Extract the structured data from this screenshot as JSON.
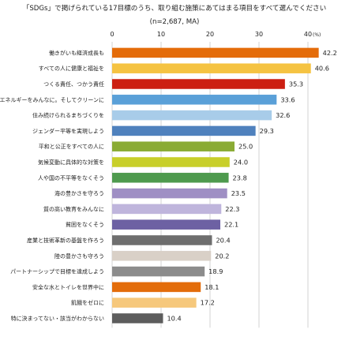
{
  "chart_data": {
    "type": "bar",
    "orientation": "horizontal",
    "title": "「SDGs」で掲げられている17目標のうち、取り組む施策にあてはまる項目をすべて選んでください",
    "subtitle": "(n=2,687, MA)",
    "unit": "(%)",
    "xlim": [
      0,
      45
    ],
    "ticks": [
      0,
      10,
      20,
      30,
      40
    ],
    "grid": true,
    "categories": [
      "働きがいも経済成長も",
      "すべての人に健康と福祉を",
      "つくる責任、つかう責任",
      "エネルギーをみんなに。そしてクリーンに",
      "住み続けられるまちづくりを",
      "ジェンダー平等を実現しよう",
      "平和と公正をすべての人に",
      "気候変動に具体的な対策を",
      "人や国の不平等をなくそう",
      "海の豊かさを守ろう",
      "質の高い教育をみんなに",
      "貧困をなくそう",
      "産業と技術革新の基盤を作ろう",
      "陸の豊かさも守ろう",
      "パートナーシップで目標を達成しよう",
      "安全な水とトイレを世界中に",
      "飢餓をゼロに",
      "特に決まってない・該当がわからない"
    ],
    "values": [
      42.2,
      40.6,
      35.3,
      33.6,
      32.6,
      29.3,
      25.0,
      24.0,
      23.8,
      23.5,
      22.3,
      22.1,
      20.4,
      20.2,
      18.9,
      18.1,
      17.2,
      10.4
    ],
    "value_labels": [
      "42.2",
      "40.6",
      "35.3",
      "33.6",
      "32.6",
      "29.3",
      "25.0",
      "24.0",
      "23.8",
      "23.5",
      "22.3",
      "22.1",
      "20.4",
      "20.2",
      "18.9",
      "18.1",
      "17.2",
      "10.4"
    ],
    "colors": [
      "#e46c0a",
      "#f5c342",
      "#cc1f12",
      "#5aa0d8",
      "#a8cce9",
      "#4f81bd",
      "#8aab34",
      "#c8cf2a",
      "#4e9a4e",
      "#9f8fc4",
      "#bfb5dc",
      "#6d61a3",
      "#6e6e6e",
      "#d9d0c7",
      "#8c8c8c",
      "#e36c0a",
      "#f6c87c",
      "#5d5d5d"
    ],
    "grid_color": "#c8c8c8"
  }
}
